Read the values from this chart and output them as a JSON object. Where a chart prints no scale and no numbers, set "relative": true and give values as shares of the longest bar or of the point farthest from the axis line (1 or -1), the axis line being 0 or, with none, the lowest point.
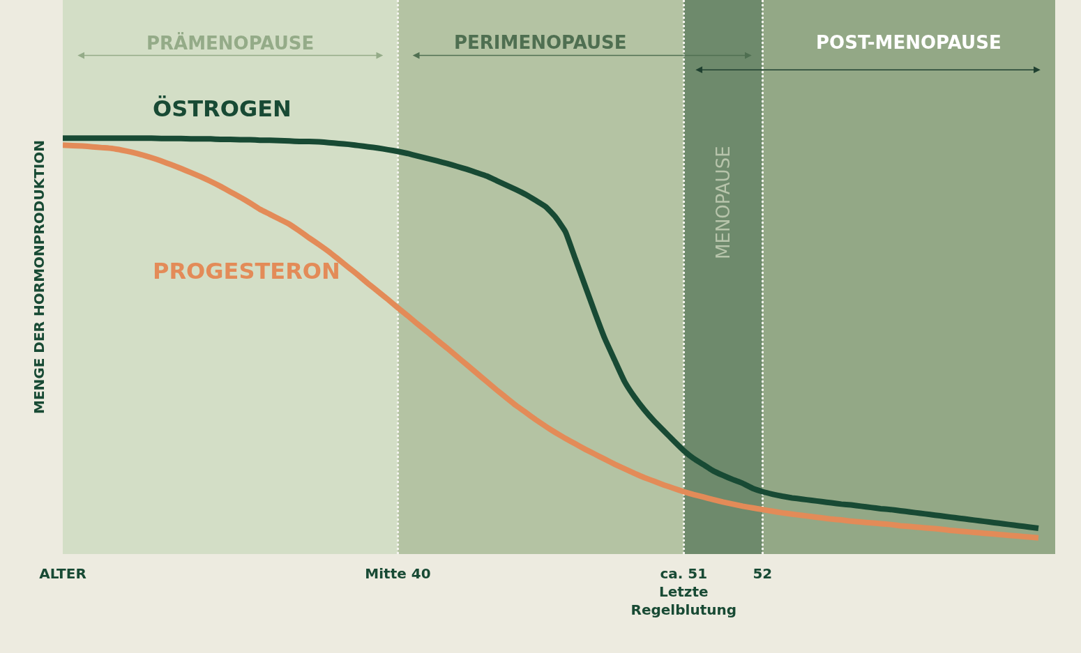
{
  "chart_data": {
    "type": "line",
    "relative": true,
    "ylabel": "MENGE DER HORMONPRODUKTION",
    "categories": [
      "ALTER",
      null,
      null,
      null,
      null,
      null,
      null,
      null,
      null,
      null,
      null,
      null,
      null,
      null,
      null,
      null,
      null,
      null,
      null,
      null,
      null,
      null,
      null,
      null,
      null,
      null,
      null,
      null,
      null,
      null,
      null,
      null,
      null,
      null,
      "Mitte 40",
      null,
      null,
      null,
      null,
      null,
      null,
      null,
      null,
      null,
      null,
      null,
      null,
      null,
      null,
      null,
      null,
      null,
      null,
      null,
      null,
      null,
      null,
      null,
      null,
      null,
      null,
      null,
      null,
      "ca. 51\nLetzte\nRegelblutung",
      null,
      null,
      null,
      null,
      null,
      null,
      null,
      "52",
      null,
      null,
      null,
      null,
      null,
      null,
      null,
      null,
      null,
      null,
      null,
      null,
      null,
      null,
      null,
      null,
      null,
      null,
      null,
      null,
      null,
      null,
      null,
      null,
      null,
      null,
      null,
      null
    ],
    "series": [
      {
        "name": "ÖSTROGEN",
        "color": "#184a34",
        "values": [
          1,
          1,
          1,
          1,
          1,
          1,
          1,
          1,
          1,
          1,
          0.999,
          0.999,
          0.999,
          0.998,
          0.998,
          0.998,
          0.997,
          0.997,
          0.996,
          0.996,
          0.995,
          0.995,
          0.994,
          0.993,
          0.992,
          0.992,
          0.991,
          0.989,
          0.987,
          0.985,
          0.982,
          0.979,
          0.976,
          0.972,
          0.968,
          0.963,
          0.957,
          0.951,
          0.945,
          0.939,
          0.932,
          0.925,
          0.917,
          0.909,
          0.898,
          0.887,
          0.876,
          0.864,
          0.85,
          0.835,
          0.81,
          0.775,
          0.71,
          0.645,
          0.58,
          0.518,
          0.466,
          0.415,
          0.378,
          0.347,
          0.32,
          0.296,
          0.272,
          0.249,
          0.23,
          0.215,
          0.2,
          0.189,
          0.179,
          0.17,
          0.158,
          0.15,
          0.144,
          0.139,
          0.135,
          0.132,
          0.129,
          0.126,
          0.123,
          0.12,
          0.118,
          0.115,
          0.112,
          0.109,
          0.107,
          0.104,
          0.101,
          0.098,
          0.095,
          0.092,
          0.089,
          0.086,
          0.083,
          0.08,
          0.077,
          0.074,
          0.071,
          0.068,
          0.065,
          0.062
        ]
      },
      {
        "name": "PROGESTERON",
        "color": "#e38b58",
        "values": [
          0.983,
          0.982,
          0.981,
          0.979,
          0.977,
          0.975,
          0.971,
          0.966,
          0.96,
          0.953,
          0.945,
          0.936,
          0.927,
          0.917,
          0.907,
          0.896,
          0.884,
          0.871,
          0.858,
          0.844,
          0.829,
          0.817,
          0.805,
          0.793,
          0.777,
          0.76,
          0.744,
          0.727,
          0.708,
          0.689,
          0.67,
          0.65,
          0.631,
          0.612,
          0.592,
          0.573,
          0.553,
          0.534,
          0.514,
          0.495,
          0.475,
          0.455,
          0.435,
          0.415,
          0.395,
          0.376,
          0.357,
          0.34,
          0.323,
          0.307,
          0.292,
          0.278,
          0.265,
          0.252,
          0.24,
          0.228,
          0.216,
          0.205,
          0.194,
          0.184,
          0.175,
          0.166,
          0.158,
          0.15,
          0.143,
          0.137,
          0.131,
          0.125,
          0.12,
          0.115,
          0.111,
          0.107,
          0.103,
          0.099,
          0.096,
          0.093,
          0.09,
          0.087,
          0.084,
          0.082,
          0.079,
          0.077,
          0.075,
          0.073,
          0.071,
          0.068,
          0.066,
          0.064,
          0.062,
          0.06,
          0.057,
          0.055,
          0.053,
          0.051,
          0.049,
          0.047,
          0.045,
          0.043,
          0.041,
          0.039
        ]
      }
    ],
    "bands": [
      {
        "axis": "x",
        "from": "ALTER",
        "to": "Mitte 40",
        "label": "PRÄMENOPAUSE",
        "color": "#d3dec6"
      },
      {
        "axis": "x",
        "from": "Mitte 40",
        "to": "ca. 51\nLetzte\nRegelblutung",
        "label": "PERIMENOPAUSE",
        "color": "#b4c3a3"
      },
      {
        "axis": "x",
        "from": "ca. 51\nLetzte\nRegelblutung",
        "to": "52",
        "label": "MENOPAUSE",
        "color": "#6e8a6c"
      }
    ],
    "annotations": [
      "POST-MENOPAUSE"
    ],
    "legend": false,
    "grid": "x",
    "line_style": "solid",
    "marker": "none"
  }
}
